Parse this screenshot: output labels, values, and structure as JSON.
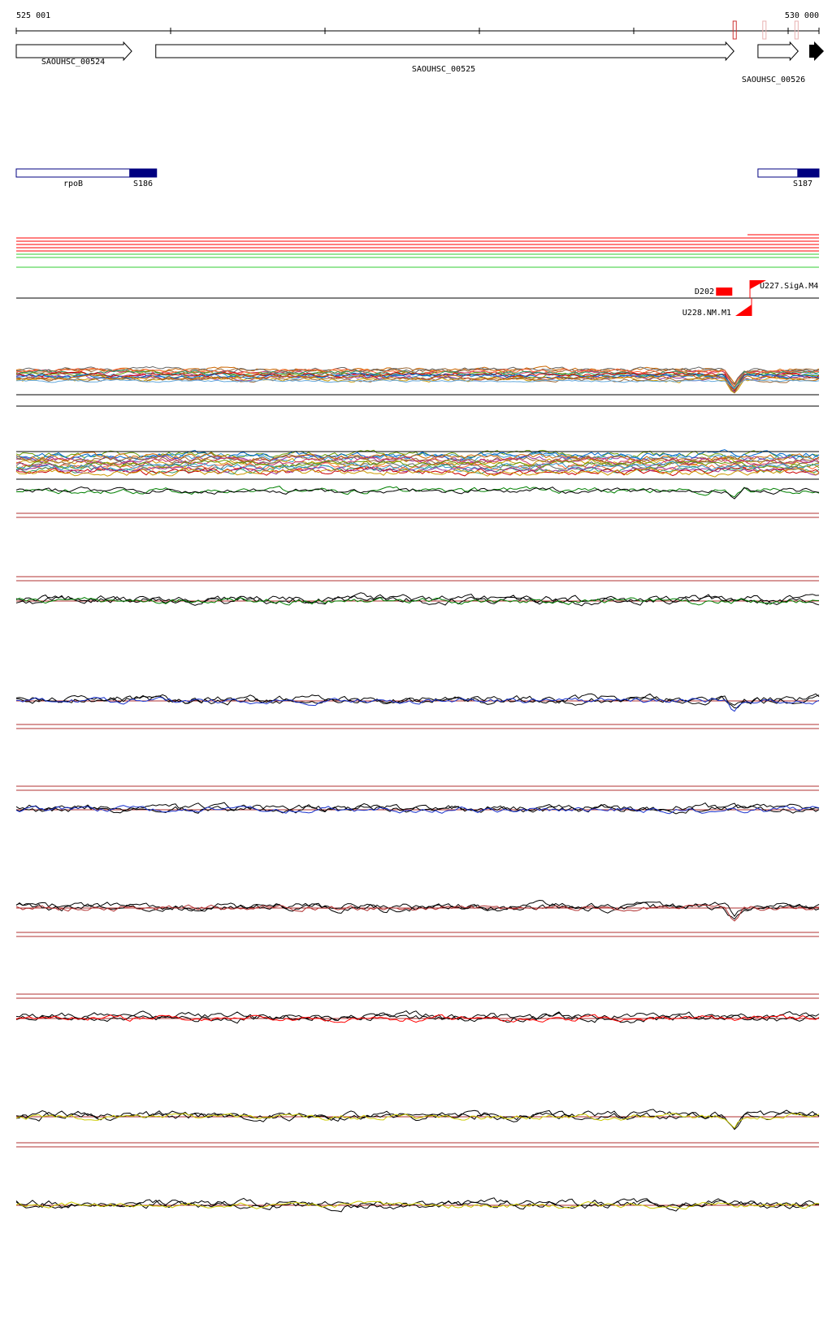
{
  "ruler": {
    "start_label": "525 001",
    "end_label": "530 000",
    "start_bp": 525001,
    "end_bp": 530000
  },
  "genes": [
    {
      "id": "gene-saouhsc-00524",
      "label": "SAOUHSC_00524",
      "start_bp": 525001,
      "end_bp": 525720,
      "strand": "+"
    },
    {
      "id": "gene-saouhsc-00525",
      "label": "SAOUHSC_00525",
      "start_bp": 525870,
      "end_bp": 529470,
      "strand": "+"
    },
    {
      "id": "gene-saouhsc-00526",
      "label": "SAOUHSC_00526",
      "start_bp": 529620,
      "end_bp": 529870,
      "strand": "+"
    }
  ],
  "partial_feature": {
    "start_bp": 529990,
    "end_bp": 530000,
    "color": "#000000"
  },
  "ruler_markers": [
    {
      "bp": 529475,
      "color": "#cc3333"
    },
    {
      "bp": 529660,
      "color": "#e8b0b0"
    },
    {
      "bp": 529860,
      "color": "#e8b0b0"
    }
  ],
  "segments": [
    {
      "id": "segment-rpob",
      "label": "rpoB",
      "label_bp": 525350,
      "start_bp": 525001,
      "end_bp": 525875,
      "dark_start_bp": 525705,
      "color": "#000080"
    },
    {
      "id": "segment-s187",
      "label": "S187",
      "label_bp": 529870,
      "start_bp": 529620,
      "end_bp": 530000,
      "dark_start_bp": 529865,
      "color": "#000080"
    },
    {
      "id": "segment-s186-label",
      "label": "S186",
      "label_bp": 525780
    }
  ],
  "track_colors": {
    "red": "#ff0000",
    "green": "#33cc33",
    "black": "#000000",
    "blue": "#1a33cc",
    "dark_red": "#b03030",
    "yellow": "#cccc00",
    "dark_green": "#008000"
  },
  "promoters": [
    {
      "id": "promoter-d202",
      "label": "D202",
      "bp": 529460,
      "strand": "-"
    },
    {
      "id": "promoter-u227",
      "label": "U227.SigA.M4",
      "bp": 529570,
      "strand": "+"
    },
    {
      "id": "promoter-u228",
      "label": "U228.NM.M1",
      "bp": 529475,
      "strand": "-"
    }
  ]
}
